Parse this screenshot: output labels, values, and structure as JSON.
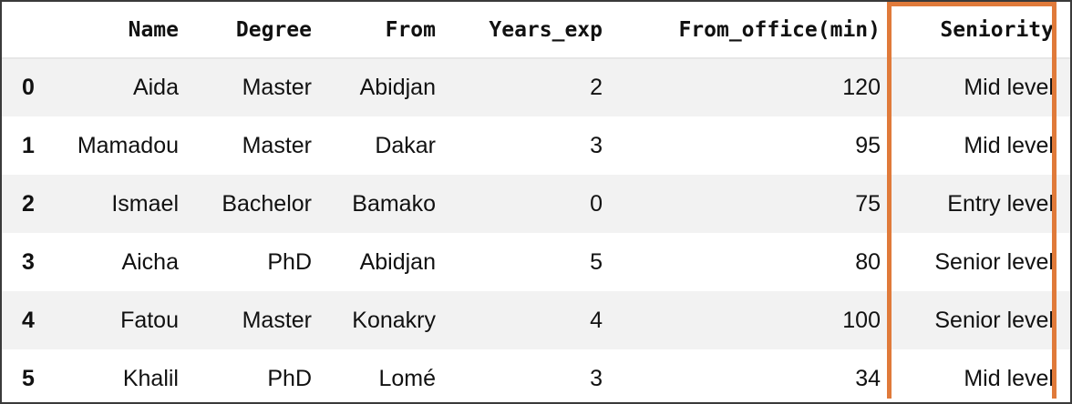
{
  "table": {
    "columns": [
      "",
      "Name",
      "Degree",
      "From",
      "Years_exp",
      "From_office(min)",
      "Seniority"
    ],
    "rows": [
      {
        "index": "0",
        "name": "Aida",
        "degree": "Master",
        "from": "Abidjan",
        "years_exp": "2",
        "from_office": "120",
        "seniority": "Mid level"
      },
      {
        "index": "1",
        "name": "Mamadou",
        "degree": "Master",
        "from": "Dakar",
        "years_exp": "3",
        "from_office": "95",
        "seniority": "Mid level"
      },
      {
        "index": "2",
        "name": "Ismael",
        "degree": "Bachelor",
        "from": "Bamako",
        "years_exp": "0",
        "from_office": "75",
        "seniority": "Entry level"
      },
      {
        "index": "3",
        "name": "Aicha",
        "degree": "PhD",
        "from": "Abidjan",
        "years_exp": "5",
        "from_office": "80",
        "seniority": "Senior level"
      },
      {
        "index": "4",
        "name": "Fatou",
        "degree": "Master",
        "from": "Konakry",
        "years_exp": "4",
        "from_office": "100",
        "seniority": "Senior level"
      },
      {
        "index": "5",
        "name": "Khalil",
        "degree": "PhD",
        "from": "Lomé",
        "years_exp": "3",
        "from_office": "34",
        "seniority": "Mid level"
      }
    ]
  },
  "highlight": {
    "column": "Seniority",
    "color": "#e07a3a"
  }
}
